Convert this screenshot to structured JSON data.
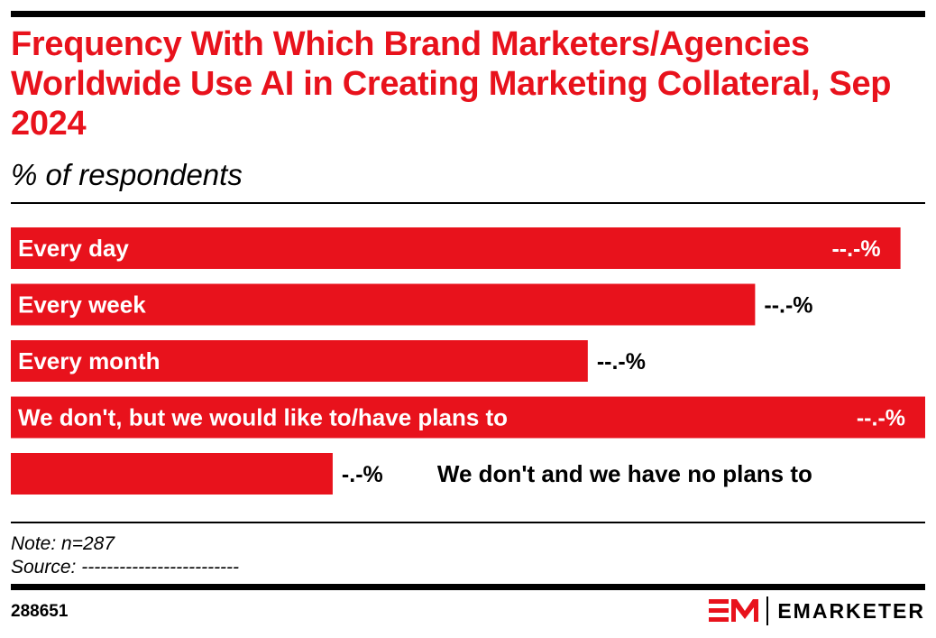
{
  "title": "Frequency With Which Brand Marketers/Agencies Worldwide Use AI in Creating Marketing Collateral, Sep 2024",
  "subtitle": "% of respondents",
  "note": "Note: n=287",
  "source": "Source: -------------------------",
  "chart_id": "288651",
  "brand": {
    "name": "EMARKETER",
    "icon": "em-logo-icon"
  },
  "colors": {
    "accent": "#e8121c",
    "text": "#000000",
    "background": "#ffffff"
  },
  "chart_data": {
    "type": "bar",
    "orientation": "horizontal",
    "categories": [
      "Every day",
      "Every week",
      "Every month",
      "We don't, but we would like to/have plans to",
      "We don't and we have no plans to"
    ],
    "values": [
      97.3,
      81.4,
      63.1,
      100,
      35.2
    ],
    "value_labels": [
      "--.-%",
      "--.-%",
      "--.-%",
      "--.-%",
      "-.-%"
    ],
    "xlim": [
      0,
      100
    ],
    "grid": false,
    "legend": "none"
  }
}
